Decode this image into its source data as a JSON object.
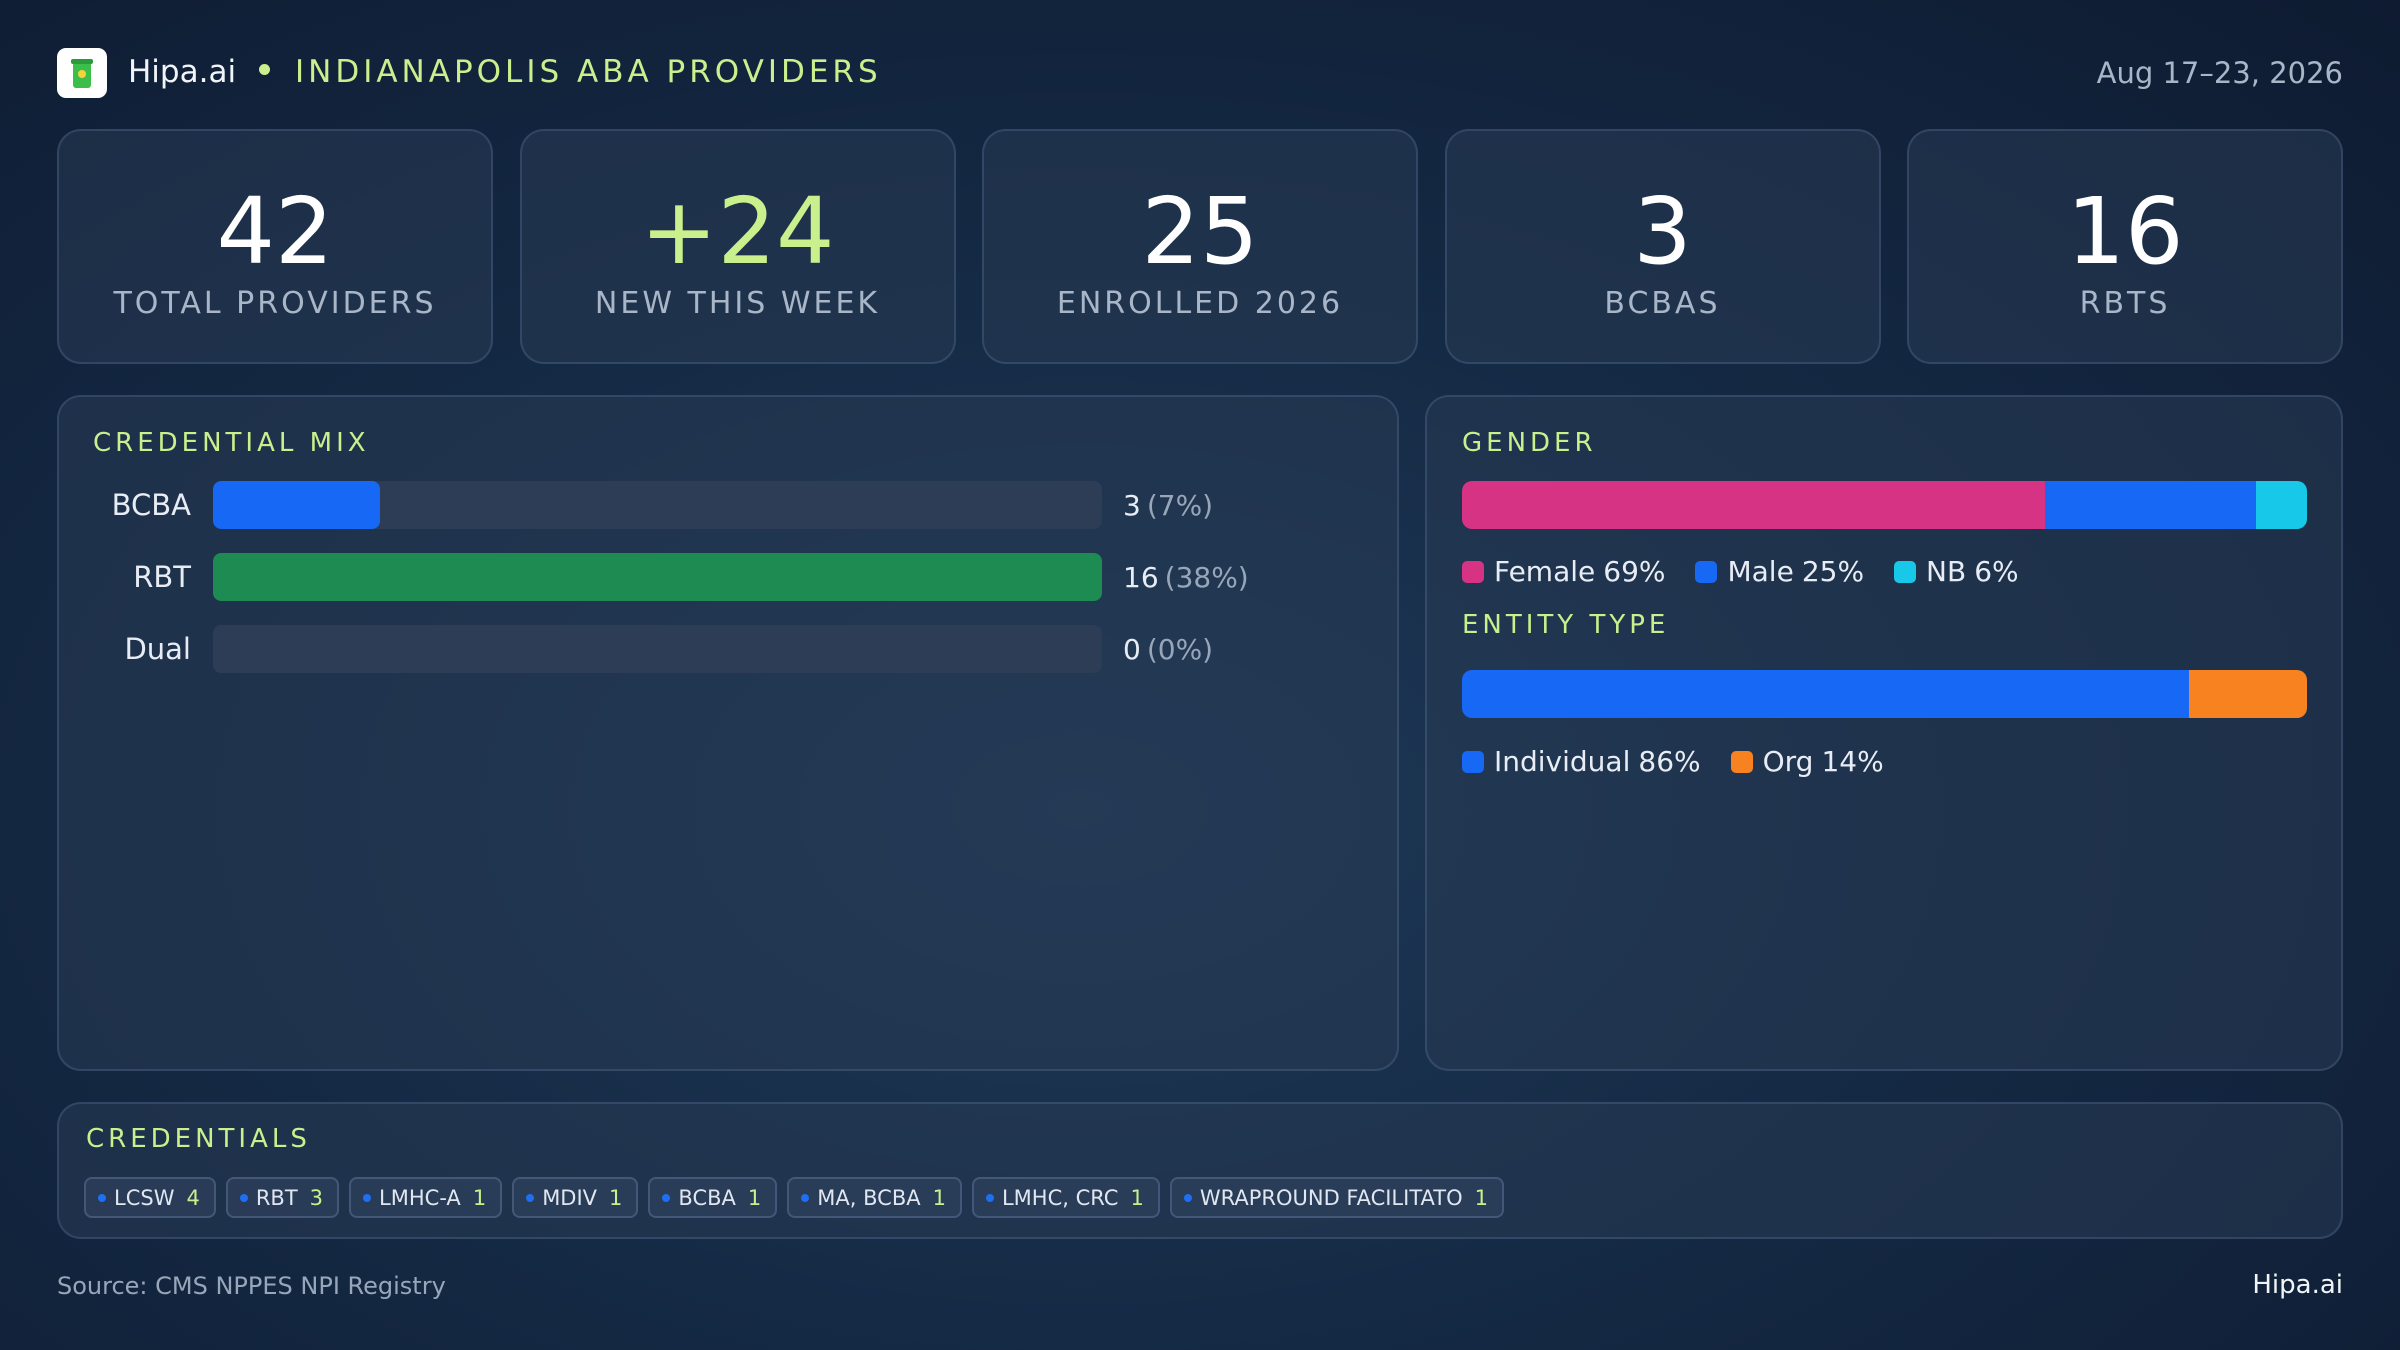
{
  "header": {
    "brand": "Hipa.ai",
    "title": "INDIANAPOLIS ABA PROVIDERS",
    "date": "Aug 17–23, 2026"
  },
  "kpis": [
    {
      "value": 42,
      "label": "TOTAL PROVIDERS"
    },
    {
      "value": "+24",
      "label": "NEW THIS WEEK"
    },
    {
      "value": 25,
      "label": "ENROLLED 2026"
    },
    {
      "value": 3,
      "label": "BCBAS"
    },
    {
      "value": 16,
      "label": "RBTS"
    }
  ],
  "credential_mix": {
    "title": "CREDENTIAL MIX",
    "categories": [
      "BCBA",
      "RBT",
      "Dual"
    ],
    "values": [
      3,
      16,
      0
    ],
    "percents": [
      7,
      38,
      0
    ],
    "percent_labels": [
      "(7%)",
      "(38%)",
      "(0%)"
    ],
    "colors": [
      "#1668f5",
      "#1e8c52",
      "#1668f5"
    ],
    "xlim": [
      0,
      16
    ]
  },
  "gender": {
    "title": "GENDER",
    "series": [
      {
        "name": "Female",
        "value": 69,
        "value_label": "69%",
        "color": "#d63384"
      },
      {
        "name": "Male",
        "value": 25,
        "value_label": "25%",
        "color": "#1668f5"
      },
      {
        "name": "NB",
        "value": 6,
        "value_label": "6%",
        "color": "#17c8e8"
      }
    ]
  },
  "entity_type": {
    "title": "ENTITY TYPE",
    "series": [
      {
        "name": "Individual",
        "value": 86,
        "value_label": "86%",
        "color": "#1668f5"
      },
      {
        "name": "Org",
        "value": 14,
        "value_label": "14%",
        "color": "#f7821f"
      }
    ]
  },
  "credentials": {
    "title": "CREDENTIALS",
    "items": [
      {
        "name": "LCSW",
        "count": 4
      },
      {
        "name": "RBT",
        "count": 3
      },
      {
        "name": "LMHC-A",
        "count": 1
      },
      {
        "name": "MDIV",
        "count": 1
      },
      {
        "name": "BCBA",
        "count": 1
      },
      {
        "name": "MA, BCBA",
        "count": 1
      },
      {
        "name": "LMHC, CRC",
        "count": 1
      },
      {
        "name": "WRAPROUND FACILITATO",
        "count": 1
      }
    ]
  },
  "footer": {
    "source": "Source: CMS NPPES NPI Registry",
    "brand": "Hipa.ai"
  }
}
